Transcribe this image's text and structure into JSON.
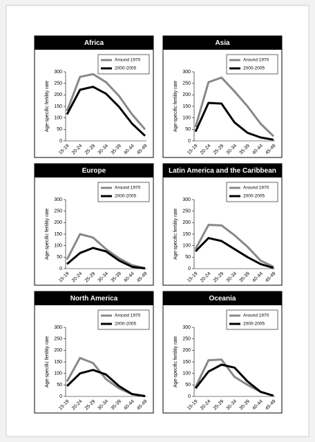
{
  "chart_data": [
    {
      "type": "line",
      "title": "Africa",
      "y_label": "Age-specific fertility rate",
      "categories": [
        "15-19",
        "20-24",
        "25-29",
        "30-34",
        "35-39",
        "40-44",
        "45-49"
      ],
      "series": [
        {
          "name": "Around 1970",
          "color": "#888888",
          "values": [
            130,
            278,
            290,
            255,
            195,
            115,
            50
          ]
        },
        {
          "name": "2000-2005",
          "color": "#000000",
          "values": [
            115,
            222,
            235,
            205,
            148,
            75,
            22
          ]
        }
      ],
      "ylim": [
        0,
        300
      ],
      "yticks": [
        0,
        50,
        100,
        150,
        200,
        250,
        300
      ],
      "legend": "top-right"
    },
    {
      "type": "line",
      "title": "Asia",
      "y_label": "Age-specific fertility rate",
      "categories": [
        "15-19",
        "20-24",
        "25-29",
        "30-34",
        "35-39",
        "40-44",
        "45-49"
      ],
      "series": [
        {
          "name": "Around 1970",
          "color": "#888888",
          "values": [
            60,
            255,
            275,
            215,
            150,
            75,
            20
          ]
        },
        {
          "name": "2000-2005",
          "color": "#000000",
          "values": [
            40,
            165,
            162,
            80,
            35,
            15,
            5
          ]
        }
      ],
      "ylim": [
        0,
        300
      ],
      "yticks": [
        0,
        50,
        100,
        150,
        200,
        250,
        300
      ],
      "legend": "top-right"
    },
    {
      "type": "line",
      "title": "Europe",
      "y_label": "Age-specific fertility rate",
      "categories": [
        "15-19",
        "20-24",
        "25-29",
        "30-34",
        "35-39",
        "40-44",
        "45-49"
      ],
      "series": [
        {
          "name": "Around 1970",
          "color": "#888888",
          "values": [
            40,
            150,
            135,
            85,
            45,
            15,
            2
          ]
        },
        {
          "name": "2000-2005",
          "color": "#000000",
          "values": [
            20,
            68,
            90,
            75,
            35,
            8,
            1
          ]
        }
      ],
      "ylim": [
        0,
        300
      ],
      "yticks": [
        0,
        50,
        100,
        150,
        200,
        250,
        300
      ],
      "legend": "top-right"
    },
    {
      "type": "line",
      "title": "Latin America and the Caribbean",
      "y_label": "Age-specific fertility rate",
      "categories": [
        "15-19",
        "20-24",
        "25-29",
        "30-34",
        "35-39",
        "40-44",
        "45-49"
      ],
      "series": [
        {
          "name": "Around 1970",
          "color": "#888888",
          "values": [
            85,
            190,
            188,
            145,
            95,
            35,
            8
          ]
        },
        {
          "name": "2000-2005",
          "color": "#000000",
          "values": [
            75,
            133,
            120,
            85,
            50,
            20,
            3
          ]
        }
      ],
      "ylim": [
        0,
        300
      ],
      "yticks": [
        0,
        50,
        100,
        150,
        200,
        250,
        300
      ],
      "legend": "top-right"
    },
    {
      "type": "line",
      "title": "North America",
      "y_label": "Age-specific fertility rate",
      "categories": [
        "15-19",
        "20-24",
        "25-29",
        "30-34",
        "35-39",
        "40-44",
        "45-49"
      ],
      "series": [
        {
          "name": "Around 1970",
          "color": "#888888",
          "values": [
            65,
            167,
            145,
            75,
            35,
            10,
            2
          ]
        },
        {
          "name": "2000-2005",
          "color": "#000000",
          "values": [
            45,
            100,
            115,
            95,
            45,
            10,
            1
          ]
        }
      ],
      "ylim": [
        0,
        300
      ],
      "yticks": [
        0,
        50,
        100,
        150,
        200,
        250,
        300
      ],
      "legend": "top-right"
    },
    {
      "type": "line",
      "title": "Oceania",
      "y_label": "Age-specific fertility rate",
      "categories": [
        "15-19",
        "20-24",
        "25-29",
        "30-34",
        "35-39",
        "40-44",
        "45-49"
      ],
      "series": [
        {
          "name": "Around 1970",
          "color": "#888888",
          "values": [
            40,
            157,
            160,
            85,
            50,
            20,
            3
          ]
        },
        {
          "name": "2000-2005",
          "color": "#000000",
          "values": [
            35,
            108,
            138,
            125,
            65,
            20,
            3
          ]
        }
      ],
      "ylim": [
        0,
        300
      ],
      "yticks": [
        0,
        50,
        100,
        150,
        200,
        250,
        300
      ],
      "legend": "top-right"
    }
  ]
}
